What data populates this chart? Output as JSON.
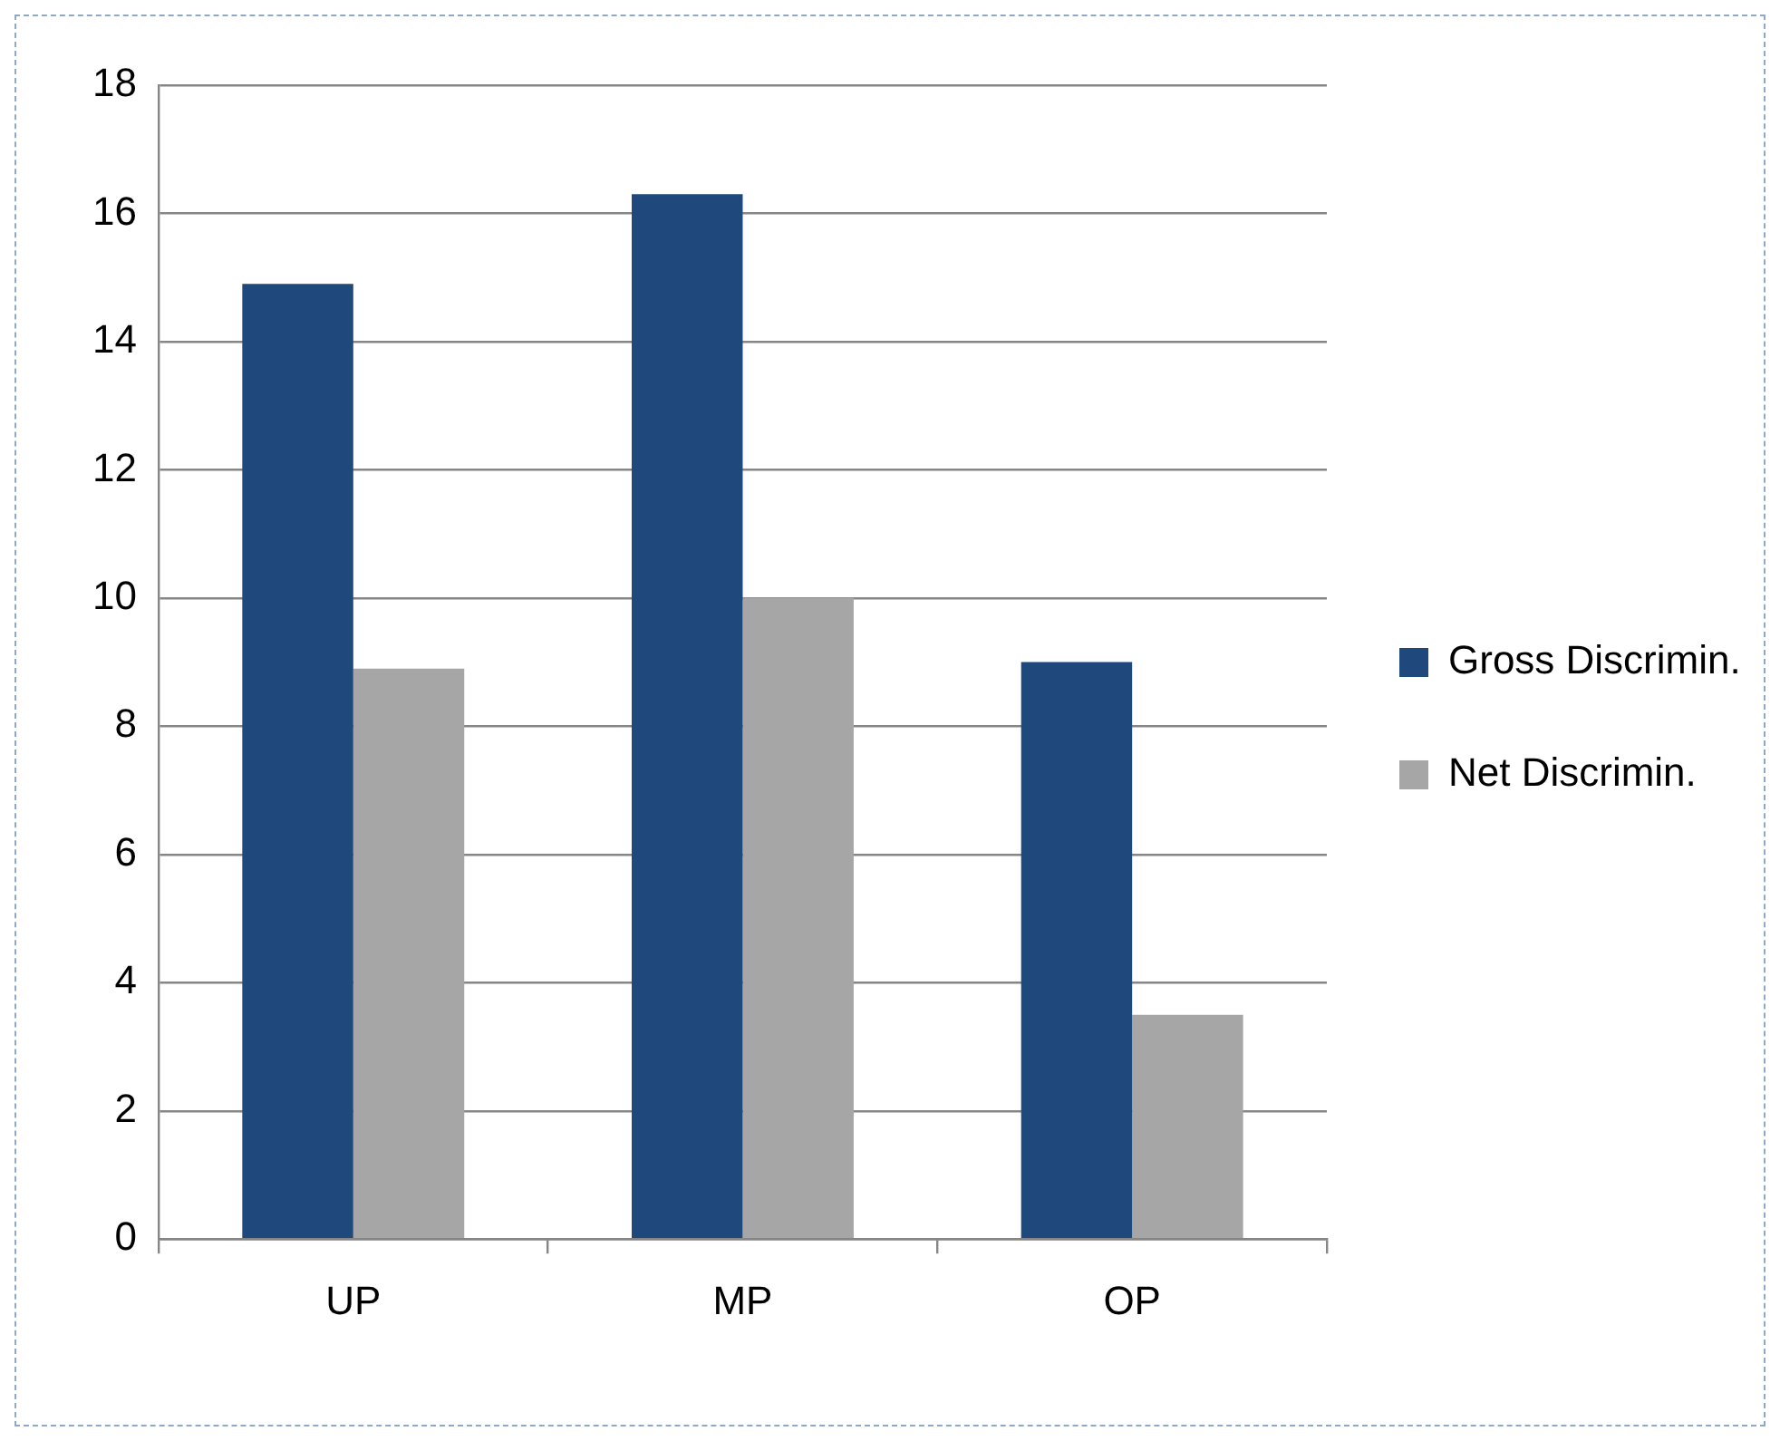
{
  "chart_data": {
    "type": "bar",
    "categories": [
      "UP",
      "MP",
      "OP"
    ],
    "series": [
      {
        "name": "Gross Discrimin.",
        "color": "#1f487c",
        "values": [
          14.9,
          16.3,
          9.0
        ]
      },
      {
        "name": "Net Discrimin.",
        "color": "#a6a6a6",
        "values": [
          8.9,
          10.0,
          3.5
        ]
      }
    ],
    "ylim": [
      0,
      18
    ],
    "yticks": [
      0,
      2,
      4,
      6,
      8,
      10,
      12,
      14,
      16,
      18
    ],
    "grid": "y",
    "legend": "right"
  }
}
